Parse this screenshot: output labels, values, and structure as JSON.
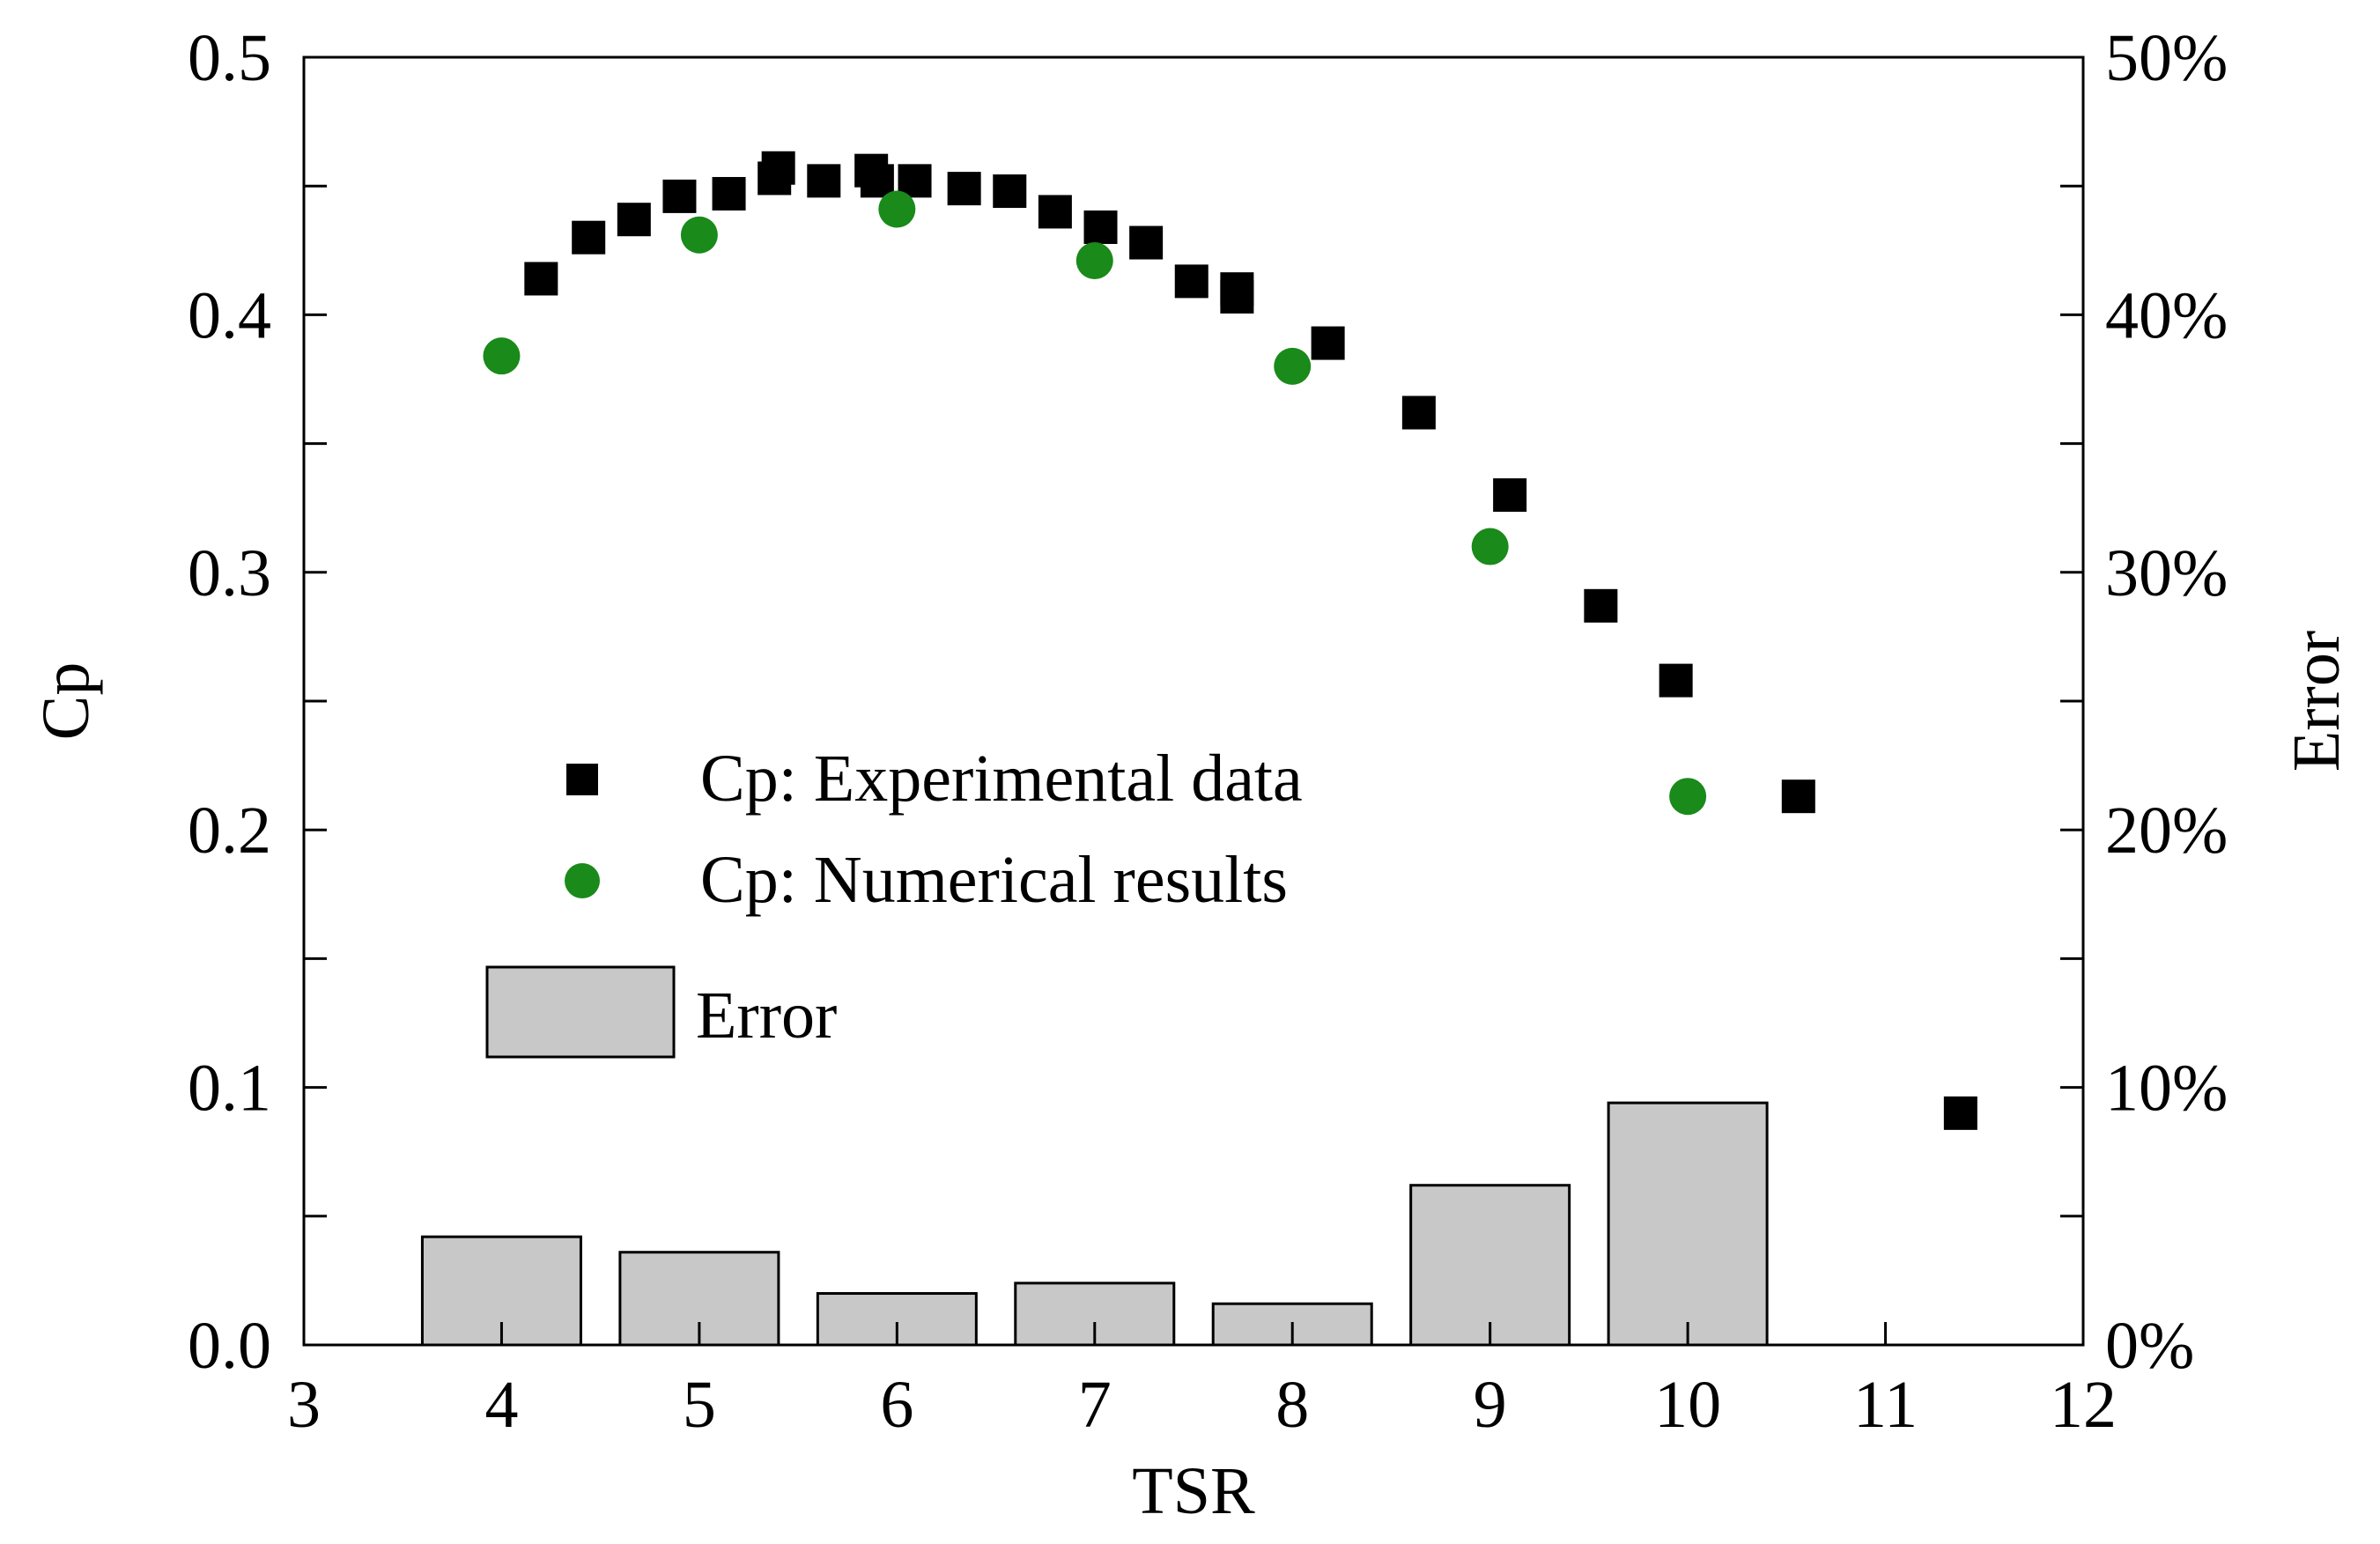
{
  "chart_data": {
    "type": "combo",
    "xlabel": "TSR",
    "ylabel": "Cp",
    "y2label": "Error",
    "xlim": [
      3,
      12
    ],
    "ylim": [
      0,
      0.5
    ],
    "y2lim": [
      0,
      50
    ],
    "x_ticks": [
      "3",
      "4",
      "5",
      "6",
      "7",
      "8",
      "9",
      "10",
      "11",
      "12"
    ],
    "y_ticks": [
      "0.0",
      "0.1",
      "0.2",
      "0.3",
      "0.4",
      "0.5"
    ],
    "y2_ticks": [
      "0%",
      "10%",
      "20%",
      "30%",
      "40%",
      "50%"
    ],
    "series": [
      {
        "name": "Cp: Experimental data",
        "kind": "scatter",
        "marker": "square",
        "color": "#000000",
        "x": [
          4.2,
          4.44,
          4.67,
          4.9,
          5.15,
          5.38,
          5.4,
          5.63,
          5.87,
          5.9,
          6.09,
          6.34,
          6.57,
          6.8,
          7.03,
          7.26,
          7.49,
          7.72,
          7.72,
          8.18,
          8.64,
          9.1,
          9.56,
          9.94,
          10.56,
          11.38
        ],
        "y": [
          0.414,
          0.43,
          0.437,
          0.446,
          0.447,
          0.453,
          0.457,
          0.452,
          0.456,
          0.452,
          0.452,
          0.449,
          0.448,
          0.44,
          0.434,
          0.428,
          0.413,
          0.41,
          0.407,
          0.389,
          0.362,
          0.33,
          0.287,
          0.258,
          0.213,
          0.09
        ]
      },
      {
        "name": "Cp: Numerical results",
        "kind": "scatter",
        "marker": "circle",
        "color": "#1a8a1a",
        "x": [
          4,
          5,
          6,
          7,
          8,
          9,
          10
        ],
        "y": [
          0.384,
          0.431,
          0.441,
          0.421,
          0.38,
          0.31,
          0.213
        ]
      },
      {
        "name": "Error",
        "kind": "bar",
        "axis": "right",
        "color": "#c8c8c8",
        "x": [
          4,
          5,
          6,
          7,
          8,
          9,
          10
        ],
        "values": [
          4.2,
          3.6,
          2.0,
          2.4,
          1.6,
          6.2,
          9.4
        ]
      }
    ],
    "legend": {
      "placement": "center-left",
      "entries": [
        "Cp: Experimental data",
        "Cp: Numerical results",
        "Error"
      ]
    }
  }
}
